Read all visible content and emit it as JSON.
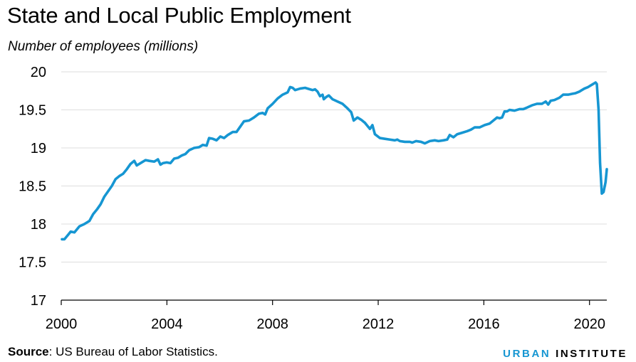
{
  "header": {
    "title": "State and Local Public Employment",
    "subtitle": "Number of employees (millions)"
  },
  "footer": {
    "source_label": "Source",
    "source_text": ": US Bureau of Labor Statistics.",
    "brand_part1": "URBAN",
    "brand_part2": "INSTITUTE"
  },
  "colors": {
    "line": "#1696d2",
    "grid": "#dedede",
    "axis": "#000000"
  },
  "chart_data": {
    "type": "line",
    "title": "State and Local Public Employment",
    "subtitle": "Number of employees (millions)",
    "xlabel": "",
    "ylabel": "",
    "xlim": [
      2000,
      2020.5
    ],
    "ylim": [
      17,
      20
    ],
    "yticks": [
      17,
      17.5,
      18,
      18.5,
      19,
      19.5,
      20
    ],
    "ytick_labels": [
      "17",
      "17.5",
      "18",
      "18.5",
      "19",
      "19.5",
      "20"
    ],
    "xticks": [
      2000,
      2004,
      2008,
      2012,
      2016,
      2020
    ],
    "xtick_labels": [
      "2000",
      "2004",
      "2008",
      "2012",
      "2016",
      "2020"
    ],
    "grid": "horizontal",
    "series": [
      {
        "values": [
          [
            2000.0,
            17.8
          ],
          [
            2000.1,
            17.8
          ],
          [
            2000.25,
            17.86
          ],
          [
            2000.35,
            17.9
          ],
          [
            2000.5,
            17.89
          ],
          [
            2000.7,
            17.97
          ],
          [
            2000.9,
            18.0
          ],
          [
            2001.1,
            18.04
          ],
          [
            2001.25,
            18.13
          ],
          [
            2001.4,
            18.19
          ],
          [
            2001.55,
            18.26
          ],
          [
            2001.7,
            18.36
          ],
          [
            2001.85,
            18.43
          ],
          [
            2002.0,
            18.5
          ],
          [
            2002.15,
            18.59
          ],
          [
            2002.3,
            18.63
          ],
          [
            2002.45,
            18.66
          ],
          [
            2002.6,
            18.72
          ],
          [
            2002.75,
            18.79
          ],
          [
            2002.9,
            18.83
          ],
          [
            2003.0,
            18.77
          ],
          [
            2003.2,
            18.81
          ],
          [
            2003.35,
            18.84
          ],
          [
            2003.5,
            18.83
          ],
          [
            2003.7,
            18.82
          ],
          [
            2003.85,
            18.85
          ],
          [
            2003.95,
            18.78
          ],
          [
            2004.05,
            18.8
          ],
          [
            2004.2,
            18.81
          ],
          [
            2004.35,
            18.8
          ],
          [
            2004.5,
            18.86
          ],
          [
            2004.65,
            18.87
          ],
          [
            2004.8,
            18.9
          ],
          [
            2004.95,
            18.92
          ],
          [
            2005.1,
            18.97
          ],
          [
            2005.3,
            19.0
          ],
          [
            2005.5,
            19.01
          ],
          [
            2005.65,
            19.04
          ],
          [
            2005.8,
            19.03
          ],
          [
            2005.9,
            19.13
          ],
          [
            2006.05,
            19.12
          ],
          [
            2006.2,
            19.1
          ],
          [
            2006.35,
            19.15
          ],
          [
            2006.5,
            19.13
          ],
          [
            2006.65,
            19.17
          ],
          [
            2006.85,
            19.21
          ],
          [
            2007.0,
            19.21
          ],
          [
            2007.15,
            19.28
          ],
          [
            2007.3,
            19.35
          ],
          [
            2007.5,
            19.36
          ],
          [
            2007.7,
            19.4
          ],
          [
            2007.9,
            19.45
          ],
          [
            2008.05,
            19.46
          ],
          [
            2008.15,
            19.44
          ],
          [
            2008.25,
            19.52
          ],
          [
            2008.45,
            19.58
          ],
          [
            2008.65,
            19.65
          ],
          [
            2008.85,
            19.7
          ],
          [
            2009.05,
            19.73
          ],
          [
            2009.15,
            19.8
          ],
          [
            2009.25,
            19.79
          ],
          [
            2009.35,
            19.76
          ],
          [
            2009.55,
            19.78
          ],
          [
            2009.75,
            19.79
          ],
          [
            2009.95,
            19.77
          ],
          [
            2010.05,
            19.76
          ],
          [
            2010.15,
            19.77
          ],
          [
            2010.25,
            19.74
          ],
          [
            2010.35,
            19.68
          ],
          [
            2010.45,
            19.7
          ],
          [
            2010.5,
            19.64
          ],
          [
            2010.6,
            19.67
          ],
          [
            2010.7,
            19.69
          ],
          [
            2010.85,
            19.64
          ],
          [
            2011.05,
            19.61
          ],
          [
            2011.25,
            19.58
          ],
          [
            2011.45,
            19.52
          ],
          [
            2011.6,
            19.47
          ],
          [
            2011.7,
            19.36
          ],
          [
            2011.85,
            19.4
          ],
          [
            2012.0,
            19.37
          ],
          [
            2012.15,
            19.33
          ],
          [
            2012.25,
            19.29
          ],
          [
            2012.35,
            19.25
          ],
          [
            2012.45,
            19.3
          ],
          [
            2012.55,
            19.18
          ],
          [
            2012.75,
            19.13
          ],
          [
            2012.95,
            19.12
          ],
          [
            2013.15,
            19.11
          ],
          [
            2013.35,
            19.1
          ],
          [
            2013.45,
            19.11
          ],
          [
            2013.55,
            19.09
          ],
          [
            2013.75,
            19.08
          ],
          [
            2013.95,
            19.08
          ],
          [
            2014.05,
            19.07
          ],
          [
            2014.2,
            19.09
          ],
          [
            2014.4,
            19.08
          ],
          [
            2014.55,
            19.06
          ],
          [
            2014.75,
            19.09
          ],
          [
            2014.95,
            19.1
          ],
          [
            2015.1,
            19.09
          ],
          [
            2015.3,
            19.1
          ],
          [
            2015.45,
            19.11
          ],
          [
            2015.55,
            19.17
          ],
          [
            2015.7,
            19.14
          ],
          [
            2015.85,
            19.18
          ],
          [
            2016.05,
            19.2
          ],
          [
            2016.25,
            19.22
          ],
          [
            2016.4,
            19.24
          ],
          [
            2016.55,
            19.27
          ],
          [
            2016.75,
            19.27
          ],
          [
            2016.95,
            19.3
          ],
          [
            2017.15,
            19.32
          ],
          [
            2017.3,
            19.36
          ],
          [
            2017.45,
            19.4
          ],
          [
            2017.55,
            19.39
          ],
          [
            2017.65,
            19.4
          ],
          [
            2017.75,
            19.48
          ],
          [
            2017.85,
            19.48
          ],
          [
            2017.95,
            19.5
          ],
          [
            2018.15,
            19.49
          ],
          [
            2018.35,
            19.51
          ],
          [
            2018.5,
            19.51
          ],
          [
            2018.65,
            19.53
          ],
          [
            2018.85,
            19.56
          ],
          [
            2019.05,
            19.58
          ],
          [
            2019.25,
            19.58
          ],
          [
            2019.4,
            19.61
          ],
          [
            2019.5,
            19.57
          ],
          [
            2019.6,
            19.62
          ],
          [
            2019.75,
            19.63
          ],
          [
            2019.95,
            19.66
          ],
          [
            2020.1,
            19.7
          ],
          [
            2020.3,
            19.7
          ],
          [
            2020.45,
            19.71
          ],
          [
            2020.6,
            19.72
          ],
          [
            2020.75,
            19.74
          ],
          [
            2020.95,
            19.78
          ],
          [
            2021.1,
            19.8
          ],
          [
            2021.25,
            19.83
          ],
          [
            2021.4,
            19.86
          ],
          [
            2021.45,
            19.84
          ],
          [
            2021.52,
            19.5
          ],
          [
            2021.58,
            18.8
          ],
          [
            2021.65,
            18.4
          ],
          [
            2021.72,
            18.42
          ],
          [
            2021.8,
            18.55
          ],
          [
            2021.85,
            18.72
          ]
        ]
      }
    ]
  }
}
